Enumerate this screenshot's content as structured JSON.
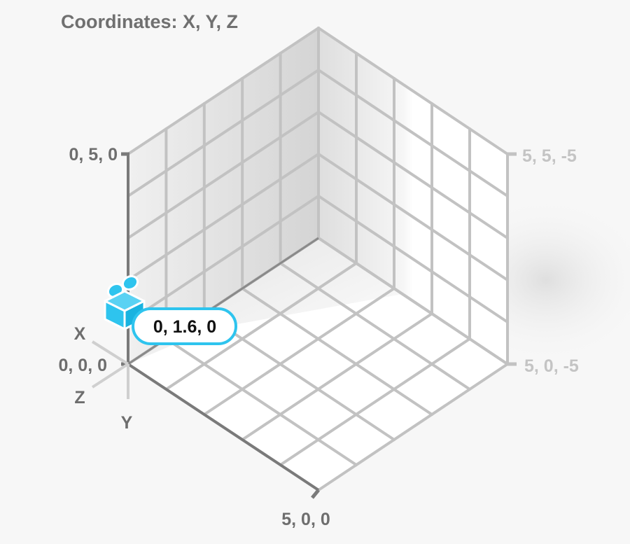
{
  "title": "Coordinates: X, Y, Z",
  "axes": {
    "x_label": "X",
    "y_label": "Y",
    "z_label": "Z"
  },
  "corners": {
    "origin": "0, 0, 0",
    "top_left": "0, 5, 0",
    "bottom": "5, 0, 0",
    "top_right": "5, 5, -5",
    "right": "5, 0, -5"
  },
  "grid": {
    "divisions": 5
  },
  "marker": {
    "icon": "box-with-bow-icon",
    "label": "0, 1.6, 0",
    "position": [
      0,
      1.6,
      0
    ]
  },
  "colors": {
    "accent": "#2ec4ee",
    "axis_dark": "#7a7a7a",
    "grid": "#c2c2c2",
    "corner_light": "#c4c4c4",
    "text": "#6e6e6e"
  }
}
